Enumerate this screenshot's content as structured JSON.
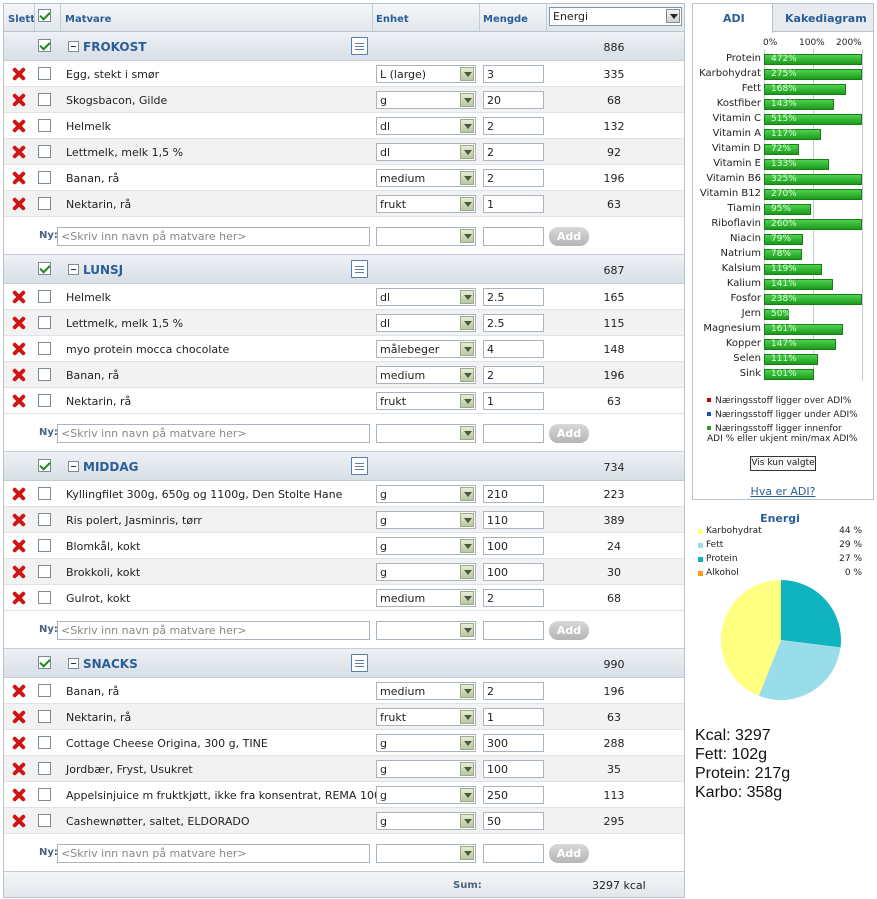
{
  "header": {
    "delete_label": "Slett",
    "food_label": "Matvare",
    "unit_label": "Enhet",
    "amount_label": "Mengde",
    "nutrient_select": "Energi"
  },
  "sections": [
    {
      "title": "FROKOST",
      "energy": "886",
      "items": [
        {
          "name": "Egg, stekt i smør",
          "unit": "L (large)",
          "qty": "3",
          "energy": "335"
        },
        {
          "name": "Skogsbacon, Gilde",
          "unit": "g",
          "qty": "20",
          "energy": "68"
        },
        {
          "name": "Helmelk",
          "unit": "dl",
          "qty": "2",
          "energy": "132"
        },
        {
          "name": "Lettmelk, melk 1,5 %",
          "unit": " dl",
          "qty": "2",
          "energy": "92"
        },
        {
          "name": "Banan, rå",
          "unit": "medium",
          "qty": "2",
          "energy": "196"
        },
        {
          "name": "Nektarin, rå",
          "unit": "frukt",
          "qty": "1",
          "energy": "63"
        }
      ]
    },
    {
      "title": "LUNSJ",
      "energy": "687",
      "items": [
        {
          "name": "Helmelk",
          "unit": "dl",
          "qty": "2.5",
          "energy": "165"
        },
        {
          "name": "Lettmelk, melk 1,5 %",
          "unit": " dl",
          "qty": "2.5",
          "energy": "115"
        },
        {
          "name": "myo protein mocca chocolate",
          "unit": "målebeger",
          "qty": "4",
          "energy": "148"
        },
        {
          "name": "Banan, rå",
          "unit": "medium",
          "qty": "2",
          "energy": "196"
        },
        {
          "name": "Nektarin, rå",
          "unit": "frukt",
          "qty": "1",
          "energy": "63"
        }
      ]
    },
    {
      "title": "MIDDAG",
      "energy": "734",
      "items": [
        {
          "name": "Kyllingfilet 300g, 650g og 1100g, Den Stolte Hane",
          "unit": "g",
          "qty": "210",
          "energy": "223"
        },
        {
          "name": "Ris polert, Jasminris, tørr",
          "unit": "g",
          "qty": "110",
          "energy": "389"
        },
        {
          "name": "Blomkål, kokt",
          "unit": "g",
          "qty": "100",
          "energy": "24"
        },
        {
          "name": "Brokkoli, kokt",
          "unit": "g",
          "qty": "100",
          "energy": "30"
        },
        {
          "name": "Gulrot, kokt",
          "unit": "medium",
          "qty": "2",
          "energy": "68"
        }
      ]
    },
    {
      "title": "SNACKS",
      "energy": "990",
      "items": [
        {
          "name": "Banan, rå",
          "unit": "medium",
          "qty": "2",
          "energy": "196"
        },
        {
          "name": "Nektarin, rå",
          "unit": "frukt",
          "qty": "1",
          "energy": "63"
        },
        {
          "name": "Cottage Cheese Origina, 300 g, TINE",
          "unit": "g",
          "qty": "300",
          "energy": "288"
        },
        {
          "name": "Jordbær, Fryst, Usukret",
          "unit": "g",
          "qty": "100",
          "energy": "35"
        },
        {
          "name": "Appelsinjuice m fruktkjøtt, ikke fra konsentrat, REMA 1000",
          "unit": "g",
          "qty": "250",
          "energy": "113"
        },
        {
          "name": "Cashewnøtter, saltet, ELDORADO",
          "unit": "g",
          "qty": "50",
          "energy": "295"
        }
      ]
    }
  ],
  "new_row": {
    "label": "Ny:",
    "placeholder": "<Skriv inn navn på matvare her>",
    "add_label": "Add"
  },
  "sum": {
    "label": "Sum:",
    "value": "3297 kcal"
  },
  "adi": {
    "tabs": [
      "ADI",
      "Kakediagram"
    ],
    "scale_labels": [
      "0%",
      "100%",
      "200%"
    ],
    "nutrients": [
      {
        "name": "Protein",
        "label": "472%",
        "pct": 472
      },
      {
        "name": "Karbohydrat",
        "label": "275%",
        "pct": 275
      },
      {
        "name": "Fett",
        "label": "168%",
        "pct": 168
      },
      {
        "name": "Kostfiber",
        "label": "143%",
        "pct": 143
      },
      {
        "name": "Vitamin C",
        "label": "515%",
        "pct": 515
      },
      {
        "name": "Vitamin A",
        "label": "117%",
        "pct": 117
      },
      {
        "name": "Vitamin D",
        "label": "72%",
        "pct": 72
      },
      {
        "name": "Vitamin E",
        "label": "133%",
        "pct": 133
      },
      {
        "name": "Vitamin B6",
        "label": "325%",
        "pct": 325
      },
      {
        "name": "Vitamin B12",
        "label": "270%",
        "pct": 270
      },
      {
        "name": "Tiamin",
        "label": "95%",
        "pct": 95
      },
      {
        "name": "Riboflavin",
        "label": "260%",
        "pct": 260
      },
      {
        "name": "Niacin",
        "label": "79%",
        "pct": 79
      },
      {
        "name": "Natrium",
        "label": "78%",
        "pct": 78
      },
      {
        "name": "Kalsium",
        "label": "119%",
        "pct": 119
      },
      {
        "name": "Kalium",
        "label": "141%",
        "pct": 141
      },
      {
        "name": "Fosfor",
        "label": "238%",
        "pct": 238
      },
      {
        "name": "Jern",
        "label": "50%",
        "pct": 50
      },
      {
        "name": "Magnesium",
        "label": "161%",
        "pct": 161
      },
      {
        "name": "Kopper",
        "label": "147%",
        "pct": 147
      },
      {
        "name": "Selen",
        "label": "111%",
        "pct": 111
      },
      {
        "name": "Sink",
        "label": "101%",
        "pct": 101
      }
    ],
    "legend": [
      {
        "text": "Næringsstoff ligger over ADI%",
        "color": "#cc0000"
      },
      {
        "text": "Næringsstoff ligger under ADI%",
        "color": "#1f4fb5"
      },
      {
        "text": "Næringsstoff ligger innenfor ADI % eller ukjent min/max ADI%",
        "color": "#2aa12a"
      }
    ],
    "show_selected_label": "Vis kun valgte",
    "what_is_label": "Hva er ADI?"
  },
  "energy_chart": {
    "title": "Energi",
    "slices": [
      {
        "name": "Karbohydrat",
        "percent_label": "44 %",
        "value": 44,
        "color": "#ffff80"
      },
      {
        "name": "Fett",
        "percent_label": "29 %",
        "value": 29,
        "color": "#99dcea"
      },
      {
        "name": "Protein",
        "percent_label": "27 %",
        "value": 27,
        "color": "#10b4c0"
      },
      {
        "name": "Alkohol",
        "percent_label": "0 %",
        "value": 0,
        "color": "#ff9a1a"
      }
    ]
  },
  "totals": {
    "kcal": "Kcal: 3297",
    "fat": "Fett: 102g",
    "protein": "Protein: 217g",
    "carbs": "Karbo: 358g"
  }
}
